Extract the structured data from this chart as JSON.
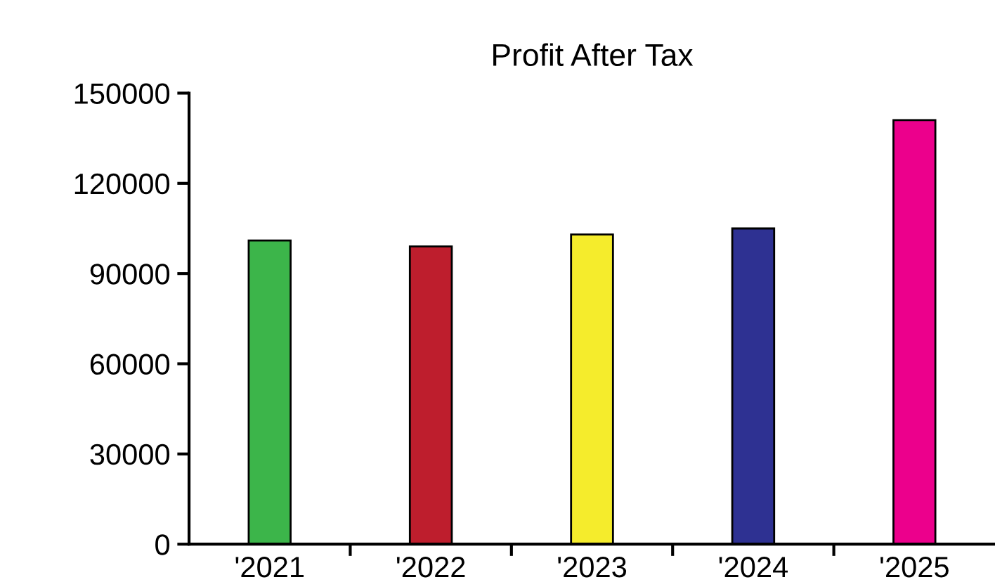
{
  "chart_data": {
    "type": "bar",
    "title": "Profit After Tax",
    "categories": [
      "'2021",
      "'2022",
      "'2023",
      "'2024",
      "'2025"
    ],
    "values": [
      101000,
      99000,
      103000,
      105000,
      141000
    ],
    "colors": [
      "#3cb54a",
      "#be1e2d",
      "#f5ec2c",
      "#2e3192",
      "#ec008c"
    ],
    "ylim": [
      0,
      150000
    ],
    "yticks": [
      0,
      30000,
      60000,
      90000,
      120000,
      150000
    ],
    "grid": false,
    "legend": false
  }
}
